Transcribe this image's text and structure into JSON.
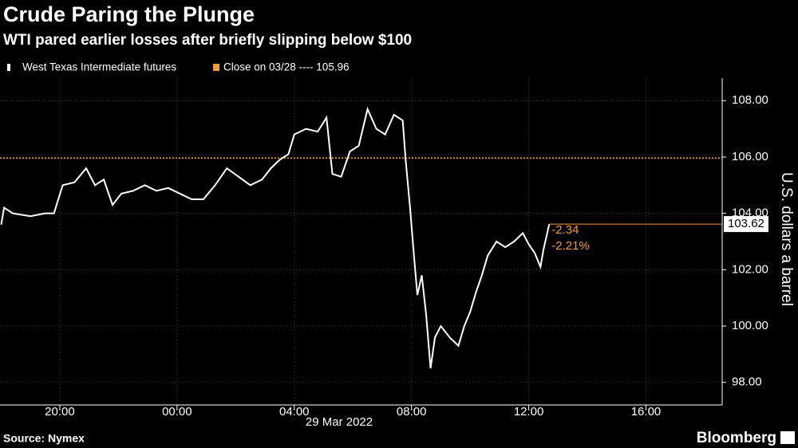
{
  "chart_data": {
    "type": "line",
    "title": "Crude Paring the Plunge",
    "subtitle": "WTI pared earlier losses after briefly slipping below $100",
    "ylabel": "U.S. dollars a barrel",
    "xlabel": "29 Mar 2022",
    "source": "Source: Nymex",
    "brand": "Bloomberg",
    "series": [
      {
        "name": "West Texas Intermediate futures",
        "color": "#ffffff",
        "x": [
          -6.0,
          -5.9,
          -5.6,
          -5.0,
          -4.5,
          -4.2,
          -3.9,
          -3.5,
          -3.1,
          -2.8,
          -2.5,
          -2.2,
          -1.9,
          -1.5,
          -1.1,
          -0.7,
          -0.3,
          0.1,
          0.5,
          0.9,
          1.3,
          1.7,
          2.1,
          2.5,
          2.9,
          3.2,
          3.5,
          3.8,
          4.0,
          4.4,
          4.8,
          5.1,
          5.3,
          5.6,
          5.9,
          6.2,
          6.5,
          6.8,
          7.1,
          7.4,
          7.7,
          7.8,
          7.95,
          8.1,
          8.2,
          8.35,
          8.5,
          8.65,
          8.8,
          9.0,
          9.3,
          9.6,
          9.8,
          10.0,
          10.2,
          10.4,
          10.6,
          10.9,
          11.2,
          11.5,
          11.8,
          12.0,
          12.2,
          12.4,
          12.5,
          12.7
        ],
        "values": [
          103.6,
          104.2,
          104.0,
          103.9,
          104.0,
          104.0,
          105.0,
          105.1,
          105.6,
          105.0,
          105.2,
          104.3,
          104.7,
          104.8,
          105.0,
          104.8,
          104.9,
          104.7,
          104.5,
          104.5,
          105.0,
          105.6,
          105.3,
          105.0,
          105.2,
          105.6,
          105.9,
          106.1,
          106.8,
          107.0,
          106.9,
          107.4,
          105.4,
          105.3,
          106.2,
          106.4,
          107.7,
          107.0,
          106.8,
          107.5,
          107.3,
          105.9,
          104.2,
          102.3,
          101.1,
          101.8,
          100.4,
          98.5,
          99.6,
          100.0,
          99.6,
          99.3,
          100.0,
          100.5,
          101.2,
          101.8,
          102.5,
          103.0,
          102.8,
          103.0,
          103.3,
          102.9,
          102.6,
          102.1,
          102.7,
          103.62
        ]
      }
    ],
    "reference_line": {
      "label": "Close on 03/28 ---- 105.96",
      "value": 105.96,
      "color": "#f39c34"
    },
    "change_labels": [
      "-2.34",
      "-2.21%"
    ],
    "xlim": [
      -6.04,
      18.6
    ],
    "xticks": [
      {
        "value": -4,
        "label": "20:00"
      },
      {
        "value": 0,
        "label": "00:00"
      },
      {
        "value": 4,
        "label": "04:00"
      },
      {
        "value": 8,
        "label": "08:00"
      },
      {
        "value": 12,
        "label": "12:00"
      },
      {
        "value": 16,
        "label": "16:00"
      }
    ],
    "ylim": [
      97.2,
      108.8
    ],
    "yticks": [
      {
        "value": 98,
        "label": "98.00"
      },
      {
        "value": 100,
        "label": "100.00"
      },
      {
        "value": 102,
        "label": "102.00"
      },
      {
        "value": 104,
        "label": "104.00"
      },
      {
        "value": 106,
        "label": "106.00"
      },
      {
        "value": 108,
        "label": "108.00"
      }
    ],
    "grid": true
  }
}
